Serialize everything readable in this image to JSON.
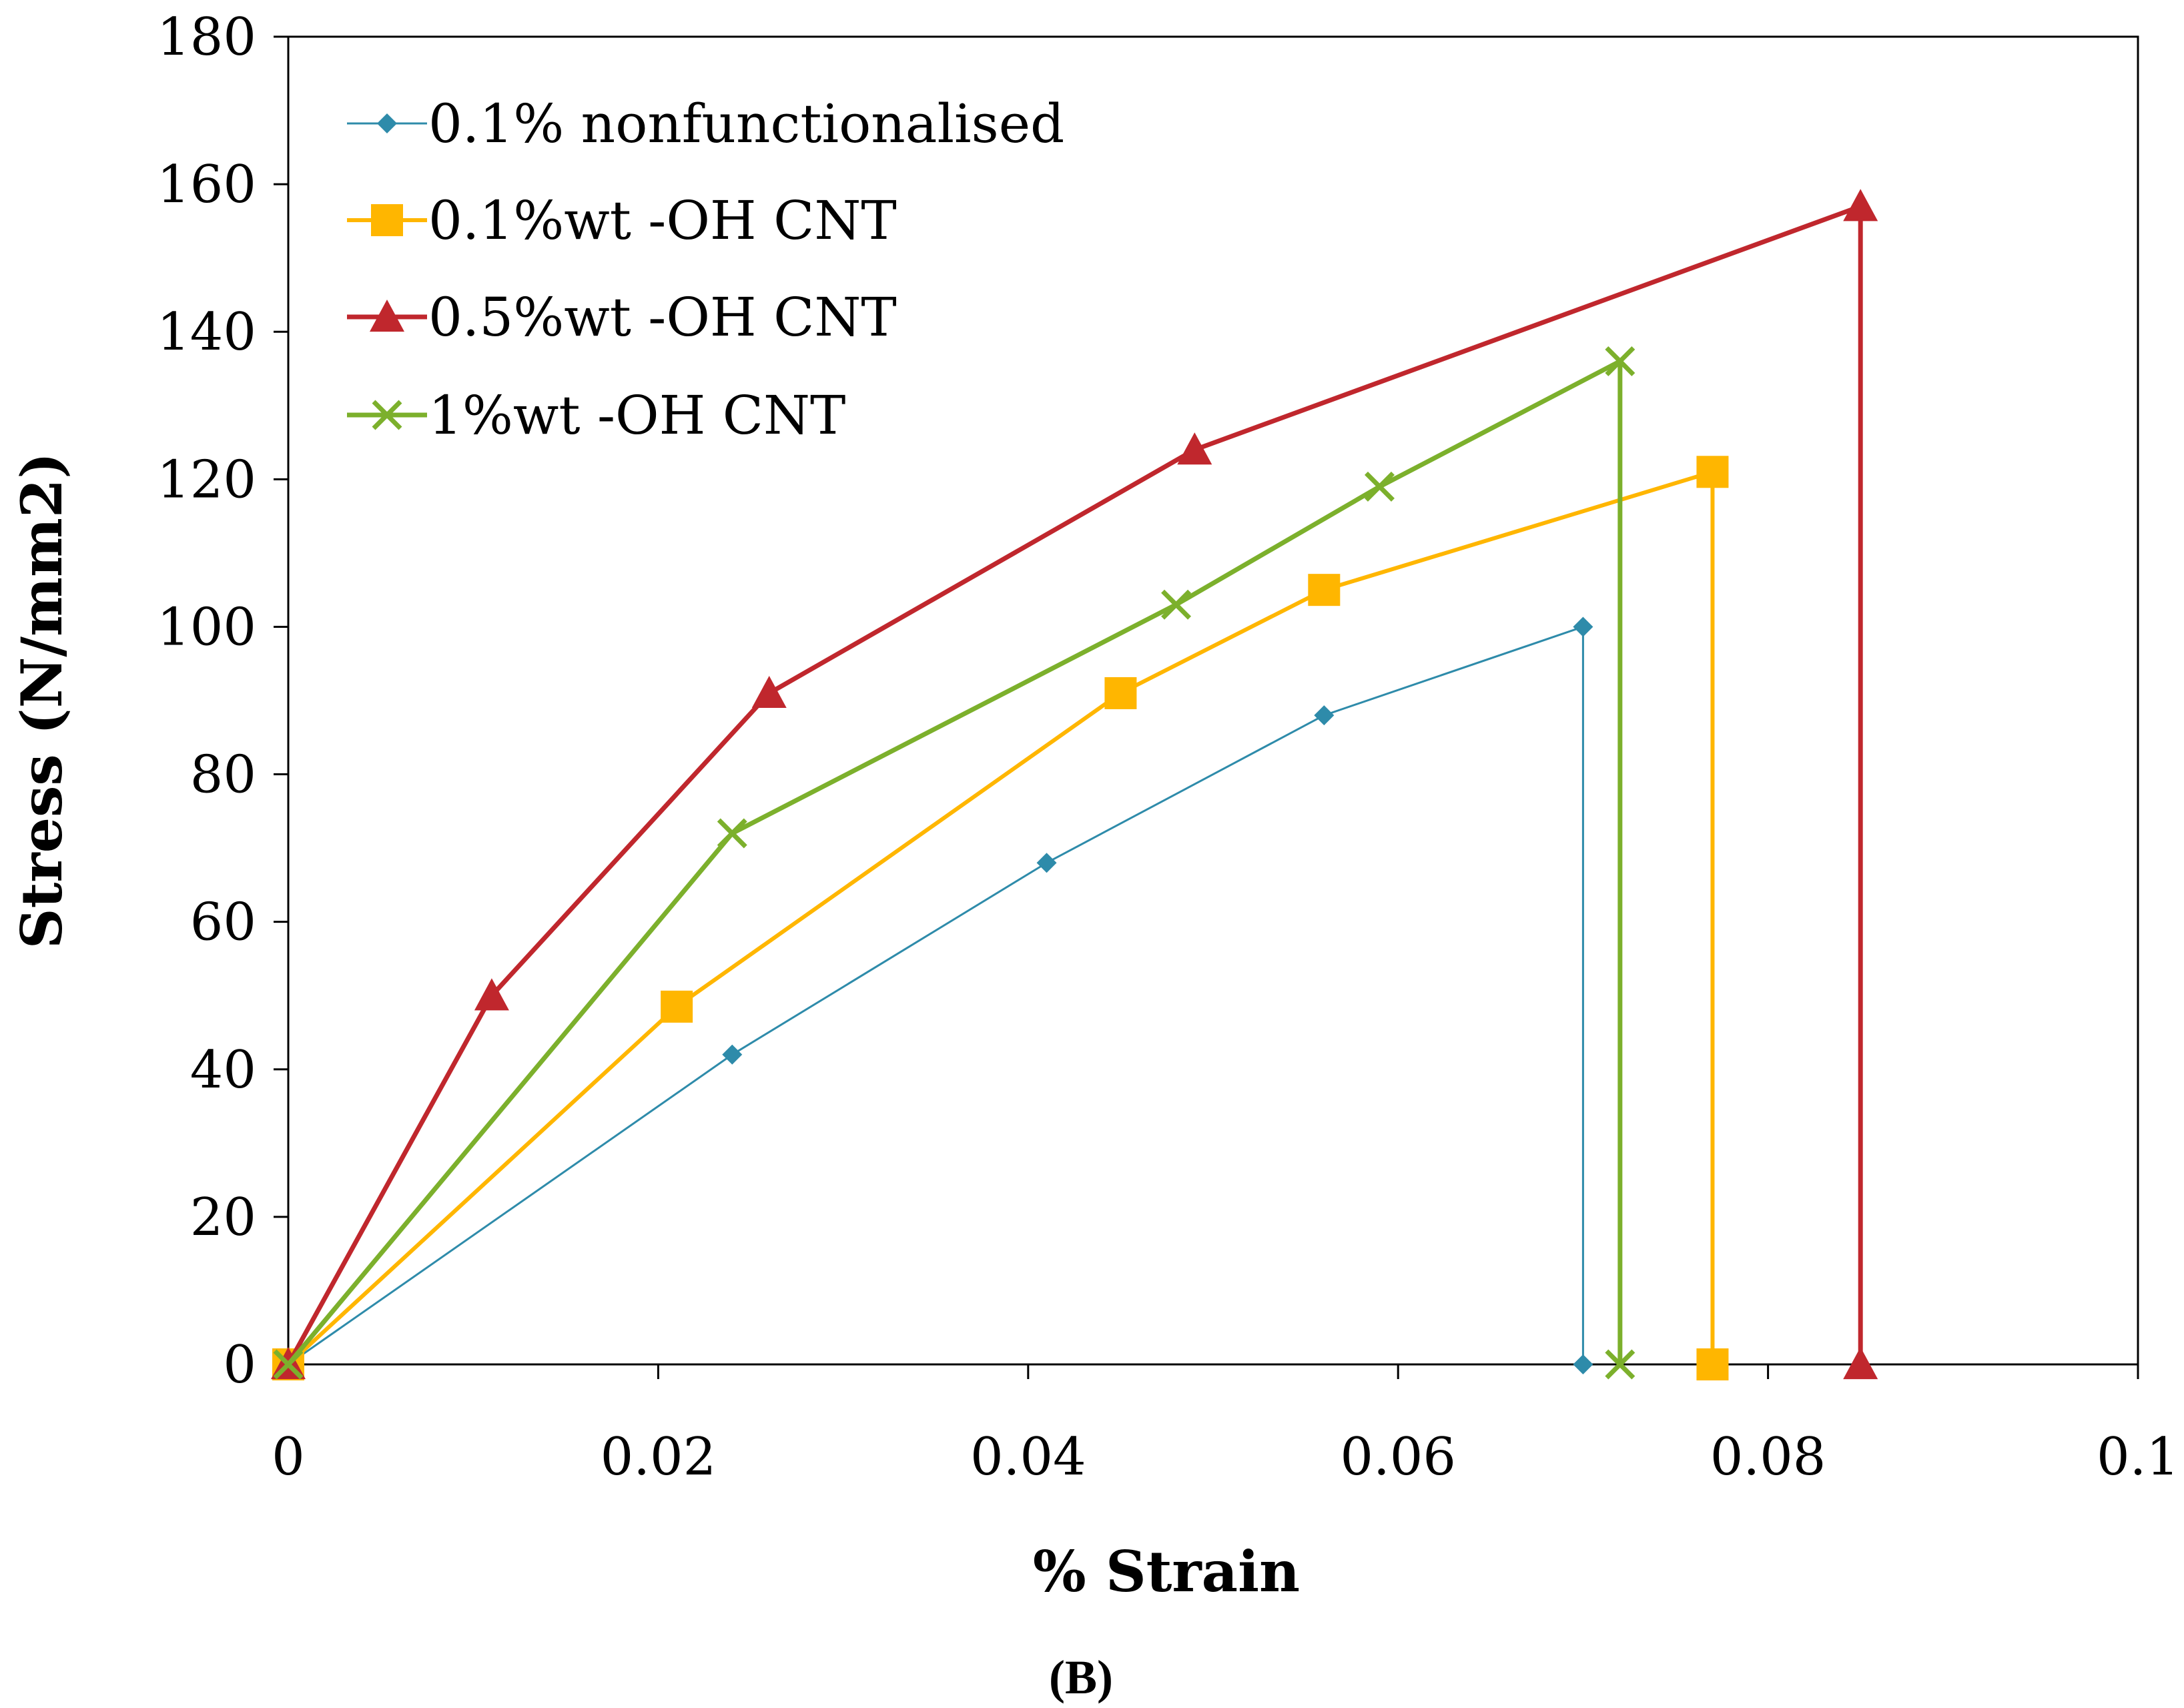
{
  "chart_data": {
    "type": "line",
    "title": "",
    "xlabel": "% Strain",
    "ylabel": "Stress (N/mm2)",
    "caption": "(B)",
    "xlim": [
      0,
      0.1
    ],
    "ylim": [
      0,
      180
    ],
    "xticks": [
      0,
      0.02,
      0.04,
      0.06,
      0.08,
      0.1
    ],
    "xtick_labels": [
      "0",
      "0.02",
      "0.04",
      "0.06",
      "0.08",
      "0.1"
    ],
    "yticks": [
      0,
      20,
      40,
      60,
      80,
      100,
      120,
      140,
      160,
      180
    ],
    "ytick_labels": [
      "0",
      "20",
      "40",
      "60",
      "80",
      "100",
      "120",
      "140",
      "160",
      "180"
    ],
    "grid": false,
    "legend_position": "top-left",
    "series": [
      {
        "name": "0.1% nonfunctionalised",
        "color": "#2E8BAA",
        "marker": "diamond",
        "x": [
          0,
          0.024,
          0.041,
          0.056,
          0.07,
          0.07
        ],
        "y": [
          0,
          42,
          68,
          88,
          100,
          0
        ]
      },
      {
        "name": "0.1%wt -OH CNT",
        "color": "#FFB600",
        "marker": "square",
        "x": [
          0,
          0.021,
          0.045,
          0.056,
          0.077,
          0.077
        ],
        "y": [
          0,
          48.5,
          91,
          105,
          121,
          0
        ]
      },
      {
        "name": "0.5%wt -OH CNT",
        "color": "#C0272D",
        "marker": "triangle",
        "x": [
          0,
          0.011,
          0.026,
          0.049,
          0.085,
          0.085
        ],
        "y": [
          0,
          50,
          91,
          124,
          157,
          0
        ]
      },
      {
        "name": "1%wt -OH CNT",
        "color": "#7CB02C",
        "marker": "x",
        "x": [
          0,
          0.024,
          0.048,
          0.059,
          0.072,
          0.072
        ],
        "y": [
          0,
          72,
          103,
          119,
          136,
          0
        ]
      }
    ]
  }
}
